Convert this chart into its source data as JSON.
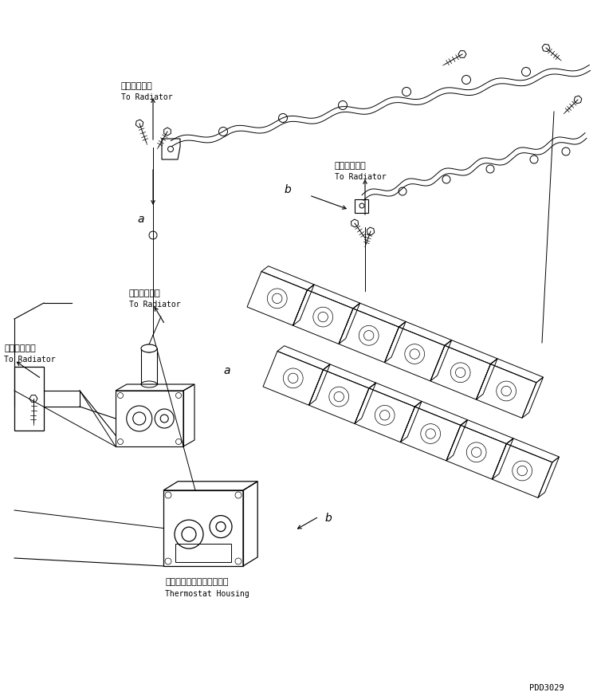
{
  "bg_color": "#ffffff",
  "line_color": "#000000",
  "fig_width": 7.49,
  "fig_height": 8.73,
  "dpi": 100,
  "watermark": "PDD3029",
  "labels": {
    "radiator_top_left_jp": "ラジエータへ",
    "radiator_top_left_en": "To Radiator",
    "radiator_top_mid_jp": "ラジエータへ",
    "radiator_top_mid_en": "To Radiator",
    "radiator_left_jp": "ラジエータへ",
    "radiator_left_en": "To Radiator",
    "radiator_mid_left_jp": "ラジエータへ",
    "radiator_mid_left_en": "To Radiator",
    "thermostat_jp": "サーモスタットハウジング",
    "thermostat_en": "Thermostat Housing",
    "label_a1": "a",
    "label_a2": "a",
    "label_b1": "b",
    "label_b2": "b"
  }
}
